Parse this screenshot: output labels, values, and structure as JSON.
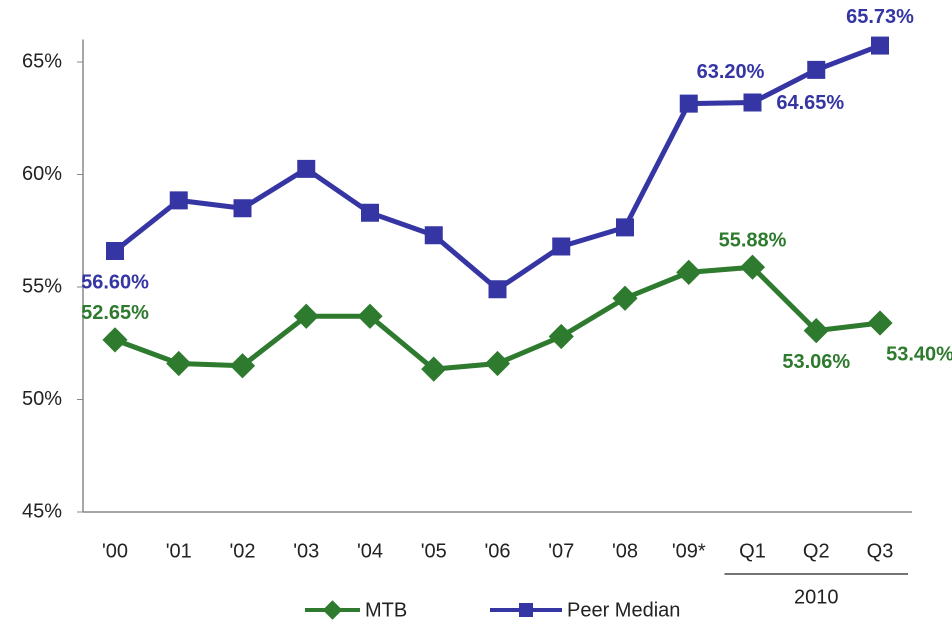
{
  "chart_data": {
    "type": "line",
    "categories": [
      "'00",
      "'01",
      "'02",
      "'03",
      "'04",
      "'05",
      "'06",
      "'07",
      "'08",
      "'09*",
      "Q1",
      "Q2",
      "Q3"
    ],
    "category_groups": [
      {
        "label": "2010",
        "start": 10,
        "end": 12
      }
    ],
    "series": [
      {
        "name": "MTB",
        "color": "#2e7a2e",
        "marker": "diamond",
        "values": [
          52.65,
          51.6,
          51.5,
          53.7,
          53.7,
          51.35,
          51.6,
          52.8,
          54.5,
          55.65,
          55.88,
          53.06,
          53.4
        ],
        "value_labels": [
          "52.65%",
          null,
          null,
          null,
          null,
          null,
          null,
          null,
          null,
          null,
          "55.88%",
          "53.06%",
          "53.40%"
        ]
      },
      {
        "name": "Peer Median",
        "color": "#3535a3",
        "marker": "square",
        "values": [
          56.6,
          58.85,
          58.5,
          60.25,
          58.3,
          57.3,
          54.9,
          56.8,
          57.65,
          63.15,
          63.2,
          64.65,
          65.73
        ],
        "value_labels": [
          "56.60%",
          null,
          null,
          null,
          null,
          null,
          null,
          null,
          null,
          null,
          "63.20%",
          "64.65%",
          "65.73%"
        ]
      }
    ],
    "ylim": [
      45,
      66
    ],
    "yticks": [
      {
        "value": 45,
        "label": "45%"
      },
      {
        "value": 50,
        "label": "50%"
      },
      {
        "value": 55,
        "label": "55%"
      },
      {
        "value": 60,
        "label": "60%"
      },
      {
        "value": 65,
        "label": "65%"
      }
    ],
    "legend": "bottom"
  }
}
